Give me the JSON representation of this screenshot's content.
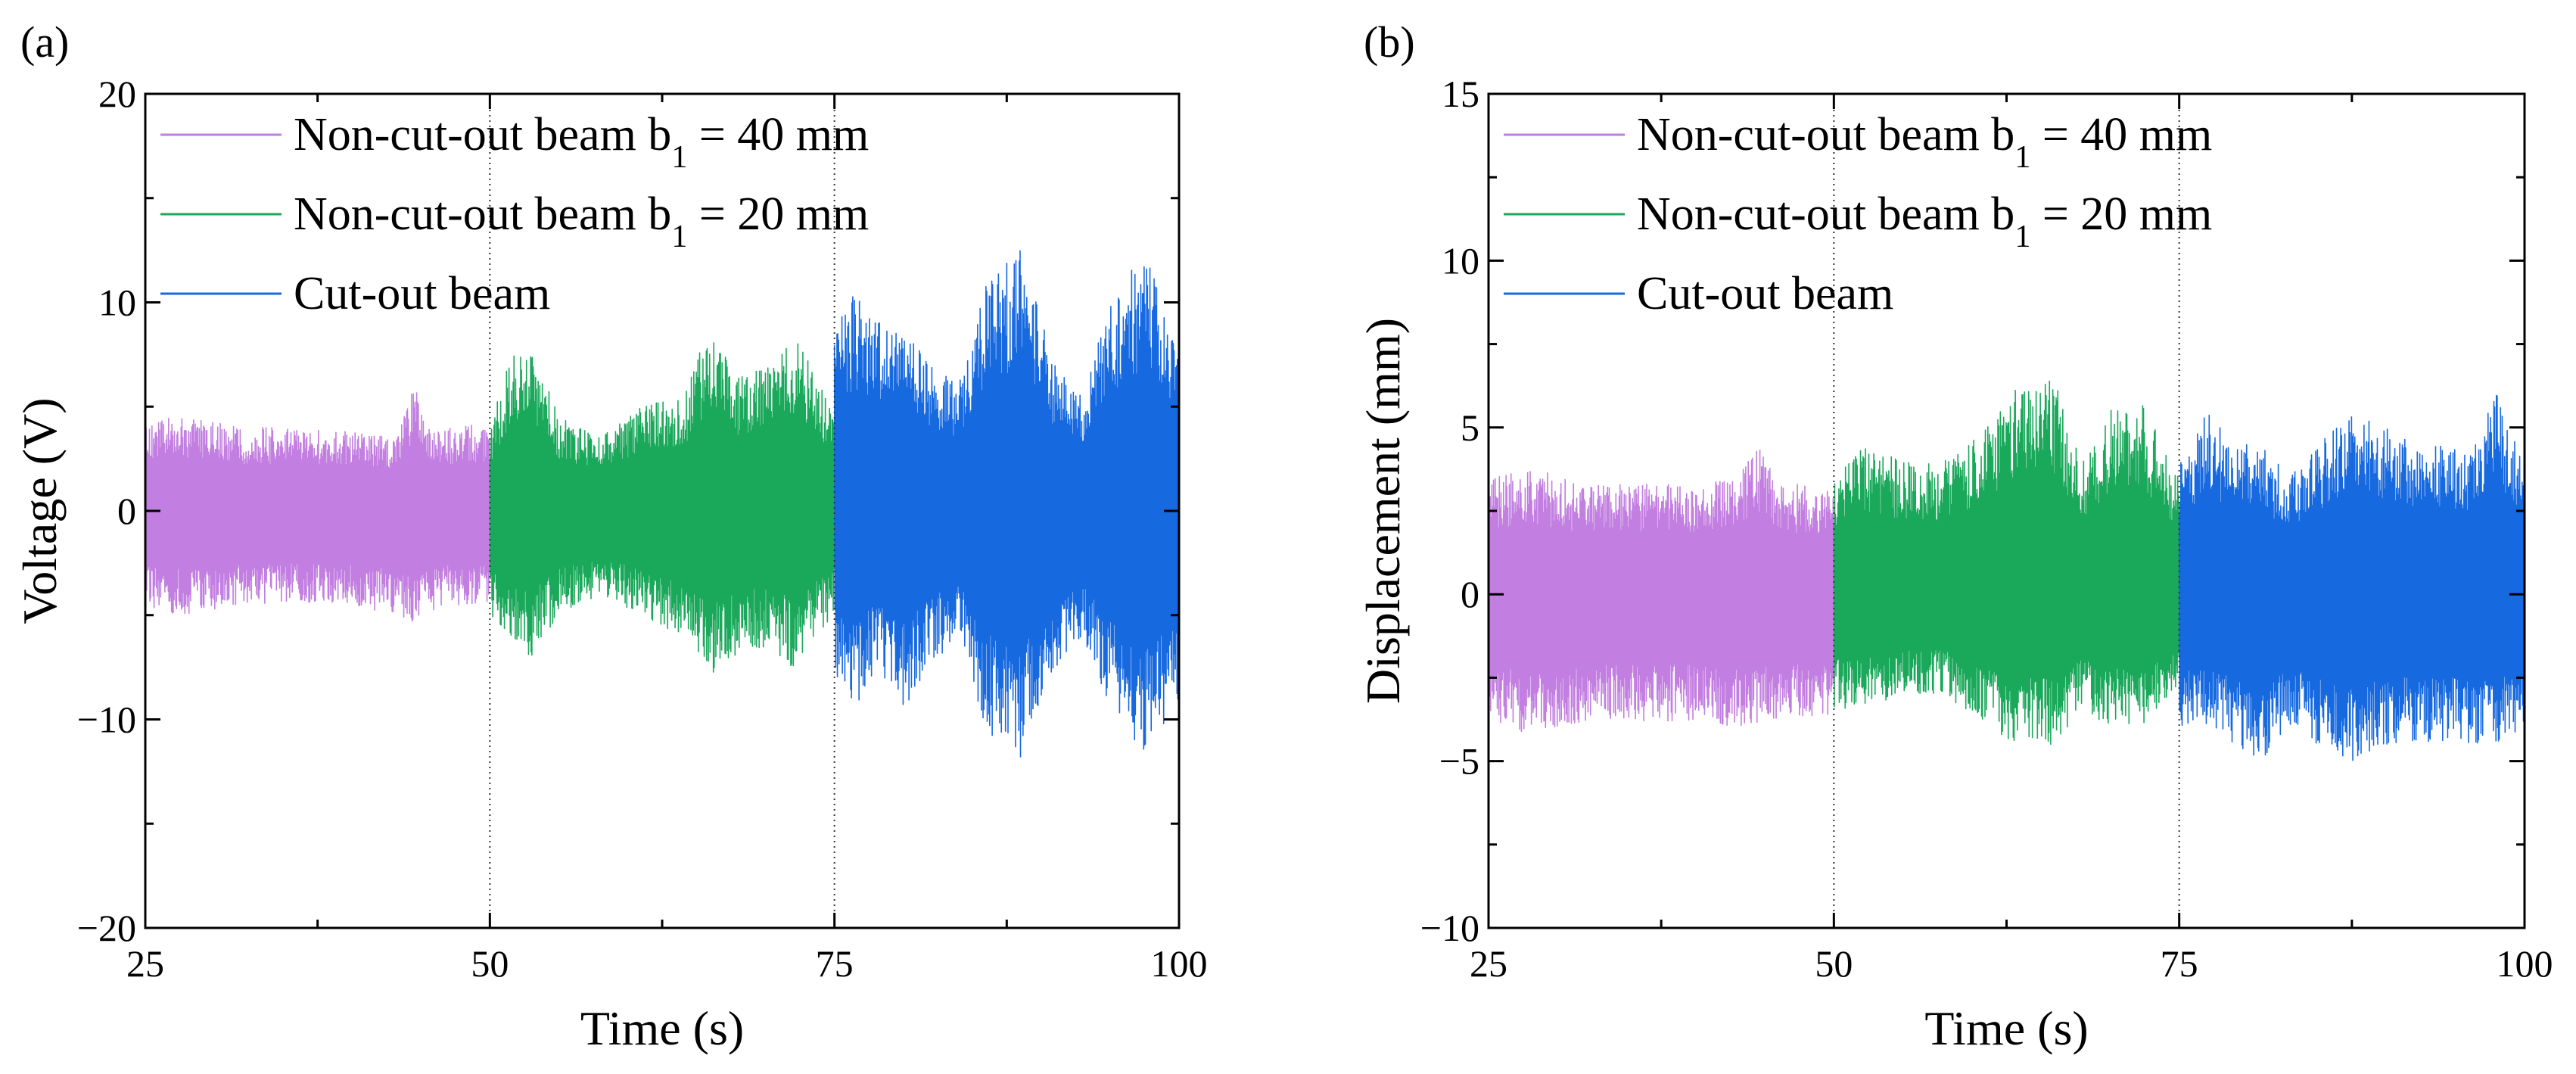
{
  "chart_data": [
    {
      "panel_label": "(a)",
      "type": "line",
      "xlabel": "Time (s)",
      "ylabel": "Voltage (V)",
      "xlim": [
        25,
        100
      ],
      "ylim": [
        -20,
        20
      ],
      "xticks": [
        25,
        50,
        75,
        100
      ],
      "yticks": [
        -20,
        -10,
        0,
        10,
        20
      ],
      "xtick_labels": [
        "25",
        "50",
        "75",
        "100"
      ],
      "ytick_labels": [
        "−20",
        "−10",
        "0",
        "10",
        "20"
      ],
      "dividers_x": [
        50,
        75
      ],
      "legend_position": "top-left",
      "series": [
        {
          "name": "Non-cut-out beam b₁ = 40 mm",
          "color": "#c27ee0",
          "x_range": [
            25,
            50
          ],
          "envelope": {
            "x": [
              25,
              28,
              32,
              36,
              40,
              43,
              44.5,
              45.5,
              47,
              50
            ],
            "upper": [
              4.5,
              4.5,
              4.0,
              4.0,
              3.8,
              3.5,
              6.0,
              4.5,
              4.0,
              4.2
            ],
            "lower": [
              -4.8,
              -5.0,
              -4.5,
              -4.5,
              -4.5,
              -5.0,
              -5.5,
              -5.0,
              -4.5,
              -4.5
            ]
          }
        },
        {
          "name": "Non-cut-out beam b₁ = 20 mm",
          "color": "#1aa85a",
          "x_range": [
            50,
            75
          ],
          "envelope": {
            "x": [
              50,
              51.5,
              53,
              55,
              58,
              61,
              64,
              66,
              68,
              70,
              72,
              75
            ],
            "upper": [
              4.0,
              7.5,
              8.0,
              4.5,
              3.5,
              5.0,
              5.5,
              9.0,
              6.5,
              7.0,
              8.5,
              5.0
            ],
            "lower": [
              -5.0,
              -6.5,
              -7.0,
              -5.0,
              -4.0,
              -5.0,
              -6.0,
              -8.0,
              -7.0,
              -6.5,
              -7.5,
              -5.0
            ]
          }
        },
        {
          "name": "Cut-out beam",
          "color": "#1769e0",
          "x_range": [
            75,
            100
          ],
          "envelope": {
            "x": [
              75,
              76.5,
              78,
              80,
              82,
              84,
              86,
              88.5,
              91,
              93,
              95,
              97.5,
              100
            ],
            "upper": [
              9.0,
              10.5,
              9.0,
              9.5,
              7.0,
              6.0,
              11.0,
              12.5,
              7.0,
              5.5,
              10.0,
              12.5,
              8.0
            ],
            "lower": [
              -8.5,
              -10.0,
              -7.5,
              -9.5,
              -7.5,
              -6.0,
              -10.5,
              -12.0,
              -8.0,
              -6.0,
              -9.5,
              -12.0,
              -9.0
            ]
          }
        }
      ]
    },
    {
      "panel_label": "(b)",
      "type": "line",
      "xlabel": "Time (s)",
      "ylabel": "Displacement (mm)",
      "xlim": [
        25,
        100
      ],
      "ylim": [
        -10,
        15
      ],
      "xticks": [
        25,
        50,
        75,
        100
      ],
      "yticks": [
        -10,
        -5,
        0,
        5,
        10,
        15
      ],
      "xtick_labels": [
        "25",
        "50",
        "75",
        "100"
      ],
      "ytick_labels": [
        "−10",
        "−5",
        "0",
        "5",
        "10",
        "15"
      ],
      "dividers_x": [
        50,
        75
      ],
      "legend_position": "top-left",
      "series": [
        {
          "name": "Non-cut-out beam b₁ = 40 mm",
          "color": "#c27ee0",
          "x_range": [
            25,
            50
          ],
          "envelope": {
            "x": [
              25,
              28,
              32,
              36,
              40,
              43,
              44.5,
              46,
              50
            ],
            "upper": [
              3.5,
              3.8,
              3.3,
              3.3,
              3.3,
              3.5,
              4.5,
              3.3,
              3.3
            ],
            "lower": [
              -3.8,
              -4.2,
              -3.8,
              -3.8,
              -3.8,
              -4.0,
              -4.0,
              -3.8,
              -3.8
            ]
          }
        },
        {
          "name": "Non-cut-out beam b₁ = 20 mm",
          "color": "#1aa85a",
          "x_range": [
            50,
            75
          ],
          "envelope": {
            "x": [
              50,
              52,
              55,
              58,
              61,
              63.5,
              66,
              68,
              70,
              72,
              75
            ],
            "upper": [
              3.5,
              4.5,
              4.0,
              4.0,
              5.0,
              6.5,
              6.5,
              4.0,
              5.5,
              6.0,
              3.5
            ],
            "lower": [
              -3.5,
              -3.5,
              -3.0,
              -3.0,
              -4.0,
              -4.5,
              -4.5,
              -3.5,
              -4.0,
              -4.0,
              -3.0
            ]
          }
        },
        {
          "name": "Cut-out beam",
          "color": "#1769e0",
          "x_range": [
            75,
            100
          ],
          "envelope": {
            "x": [
              75,
              77,
              79,
              81,
              83,
              85,
              87.5,
              90,
              92,
              94,
              96,
              98,
              100
            ],
            "upper": [
              4.0,
              5.5,
              4.5,
              4.5,
              3.5,
              4.5,
              5.5,
              5.0,
              4.5,
              4.5,
              4.5,
              6.0,
              4.0
            ],
            "lower": [
              -4.0,
              -4.0,
              -4.5,
              -5.0,
              -4.0,
              -4.5,
              -5.0,
              -4.5,
              -4.5,
              -4.5,
              -4.5,
              -4.5,
              -4.0
            ]
          }
        }
      ]
    }
  ]
}
